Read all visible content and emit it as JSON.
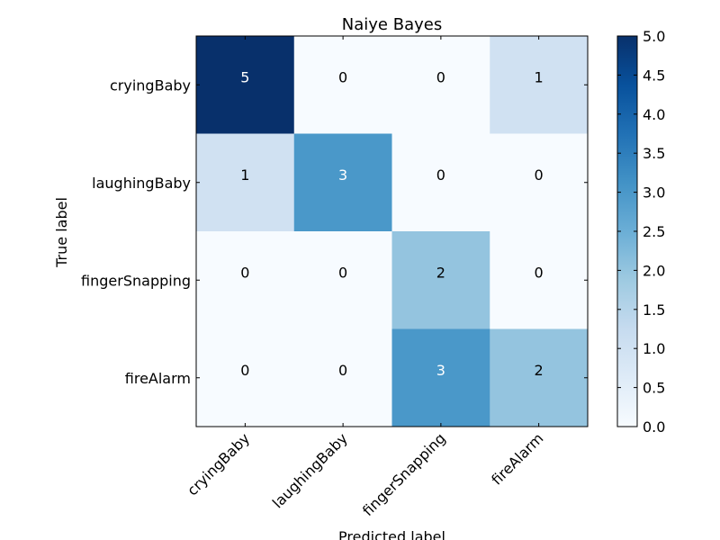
{
  "chart_data": {
    "type": "heatmap",
    "title": "Naiye Bayes",
    "xlabel": "Predicted label",
    "ylabel": "True label",
    "x_categories": [
      "cryingBaby",
      "laughingBaby",
      "fingerSnapping",
      "fireAlarm"
    ],
    "y_categories": [
      "cryingBaby",
      "laughingBaby",
      "fingerSnapping",
      "fireAlarm"
    ],
    "values": [
      [
        5,
        0,
        0,
        1
      ],
      [
        1,
        3,
        0,
        0
      ],
      [
        0,
        0,
        2,
        0
      ],
      [
        0,
        0,
        3,
        2
      ]
    ],
    "color_range": [
      0,
      5
    ],
    "colormap": "Blues",
    "colormap_stops": [
      "#f7fbff",
      "#deebf7",
      "#c6dbef",
      "#9ecae1",
      "#6baed6",
      "#4292c6",
      "#2171b5",
      "#08519c",
      "#08306b"
    ],
    "colorbar_ticks": [
      "0.0",
      "0.5",
      "1.0",
      "1.5",
      "2.0",
      "2.5",
      "3.0",
      "3.5",
      "4.0",
      "4.5",
      "5.0"
    ],
    "grid": false,
    "legend": "colorbar-right"
  }
}
